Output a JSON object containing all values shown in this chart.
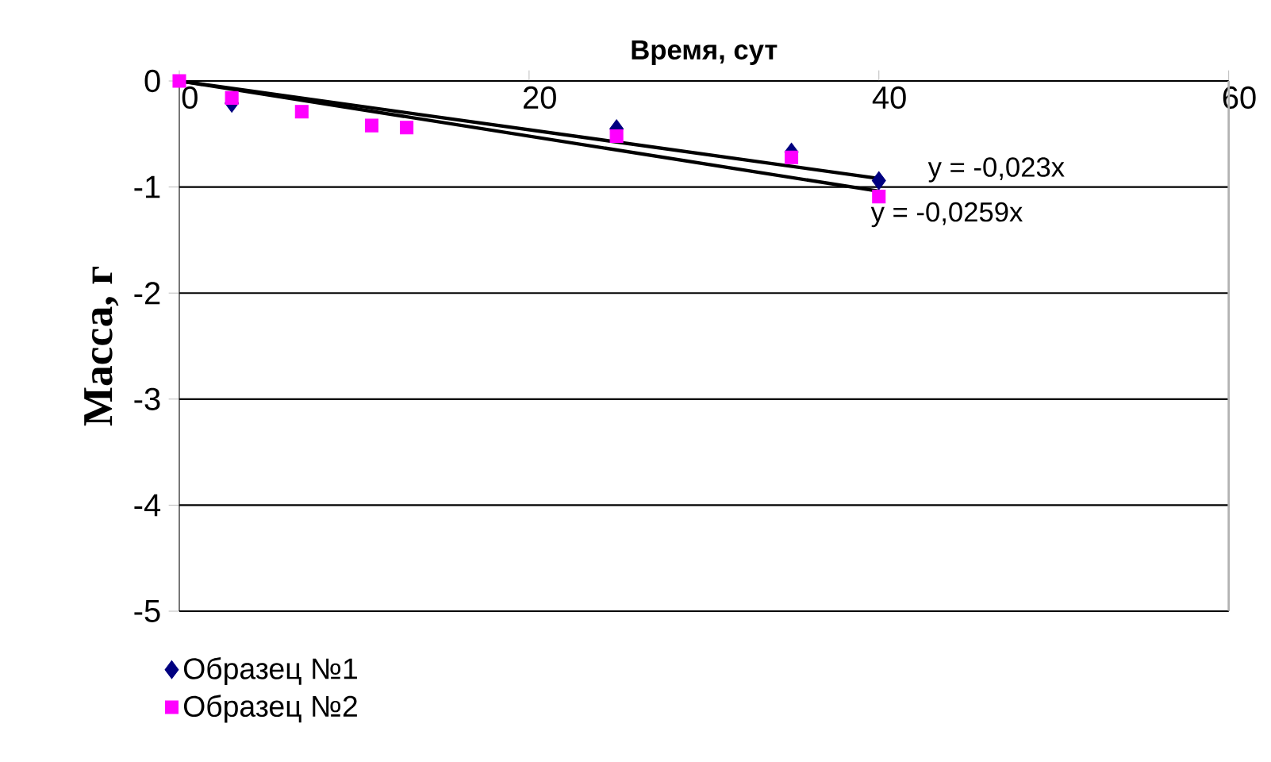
{
  "chart_data": {
    "type": "scatter",
    "xlabel": "Время, сут",
    "ylabel": "Масса, г",
    "xlim": [
      0,
      60
    ],
    "xticks": [
      0,
      20,
      40,
      60
    ],
    "ylim": [
      -5,
      0
    ],
    "yticks": [
      -5,
      -4,
      -3,
      -2,
      -1,
      0
    ],
    "grid": "y",
    "legend": "bottom left",
    "series": [
      {
        "name": "Образец №1",
        "color": "#000080",
        "marker": "diamond",
        "x": [
          3,
          25,
          35,
          40
        ],
        "values": [
          -0.21,
          -0.45,
          -0.67,
          -0.94
        ]
      },
      {
        "name": "Образец №2",
        "color": "#ff00ff",
        "marker": "square",
        "x": [
          0,
          3,
          7,
          11,
          13,
          25,
          35,
          40
        ],
        "values": [
          0,
          -0.16,
          -0.29,
          -0.42,
          -0.44,
          -0.52,
          -0.72,
          -1.09
        ]
      },
      {
        "type": "line",
        "color": "#000000",
        "x": [
          0,
          40
        ],
        "values": [
          0,
          -0.92
        ]
      },
      {
        "type": "line",
        "color": "#000000",
        "x": [
          0,
          40
        ],
        "values": [
          0,
          -1.04
        ]
      }
    ],
    "annotations": [
      {
        "text": "y = -0,023x",
        "x": 40,
        "y": -0.92
      },
      {
        "text": "y = -0,0259x",
        "x": 40,
        "y": -1.04
      }
    ]
  }
}
